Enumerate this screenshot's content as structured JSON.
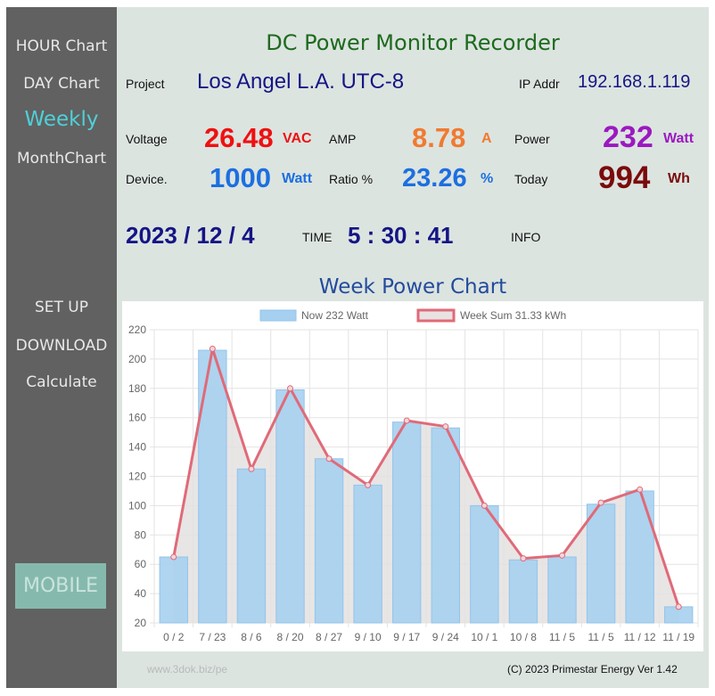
{
  "nav": {
    "hour": "HOUR Chart",
    "day": "DAY Chart",
    "weekly": "Weekly",
    "month": "MonthChart",
    "setup": "SET UP",
    "download": "DOWNLOAD",
    "calculate": "Calculate",
    "mobile": "MOBILE"
  },
  "header": {
    "title": "DC Power Monitor Recorder",
    "project_label": "Project",
    "project_value": "Los Angel L.A. UTC-8",
    "ip_label": "IP Addr",
    "ip_value": "192.168.1.119"
  },
  "readings": {
    "voltage_label": "Voltage",
    "voltage_value": "26.48",
    "voltage_unit": "VAC",
    "amp_label": "AMP",
    "amp_value": "8.78",
    "amp_unit": "A",
    "power_label": "Power",
    "power_value": "232",
    "power_unit": "Watt",
    "device_label": "Device.",
    "device_value": "1000",
    "device_unit": "Watt",
    "ratio_label": "Ratio %",
    "ratio_value": "23.26",
    "ratio_unit": "%",
    "today_label": "Today",
    "today_value": "994",
    "today_unit": "Wh"
  },
  "datetime": {
    "date": "2023 / 12 / 4",
    "time_label": "TIME",
    "time_value": "5 : 30 : 41",
    "info_label": "INFO"
  },
  "colors": {
    "voltage": "#ee1111",
    "amp": "#f07a30",
    "power": "#9b19c0",
    "device": "#1c6fe0",
    "today": "#7a0b0b",
    "navy": "#151585",
    "bar_fill": "#a6d0f0",
    "line": "#e06a78",
    "area": "#e4e0e0"
  },
  "chart_data": {
    "type": "bar",
    "title": "Week Power Chart",
    "categories": [
      "0 / 2",
      "7 / 23",
      "8 / 6",
      "8 / 20",
      "8 / 27",
      "9 / 10",
      "9 / 17",
      "9 / 24",
      "10 / 1",
      "10 / 8",
      "11 / 5",
      "11 / 5",
      "11 / 12",
      "11 / 19"
    ],
    "series": [
      {
        "name": "Now 232 Watt",
        "type": "bar",
        "values": [
          65,
          206,
          125,
          179,
          132,
          114,
          157,
          153,
          100,
          63,
          65,
          101,
          110,
          31
        ]
      },
      {
        "name": "Week Sum 31.33 kWh",
        "type": "line",
        "values": [
          65,
          207,
          125,
          180,
          132,
          114,
          158,
          154,
          100,
          64,
          66,
          102,
          111,
          31
        ]
      }
    ],
    "y_ticks": [
      "20",
      "40",
      "60",
      "80",
      "100",
      "120",
      "140",
      "160",
      "180",
      "200",
      "220"
    ],
    "ylim": [
      20,
      220
    ],
    "grid": true,
    "legend": "top"
  },
  "footer": {
    "left": "www.3dok.biz/pe",
    "right": "(C) 2023 Primestar Energy  Ver 1.42"
  }
}
